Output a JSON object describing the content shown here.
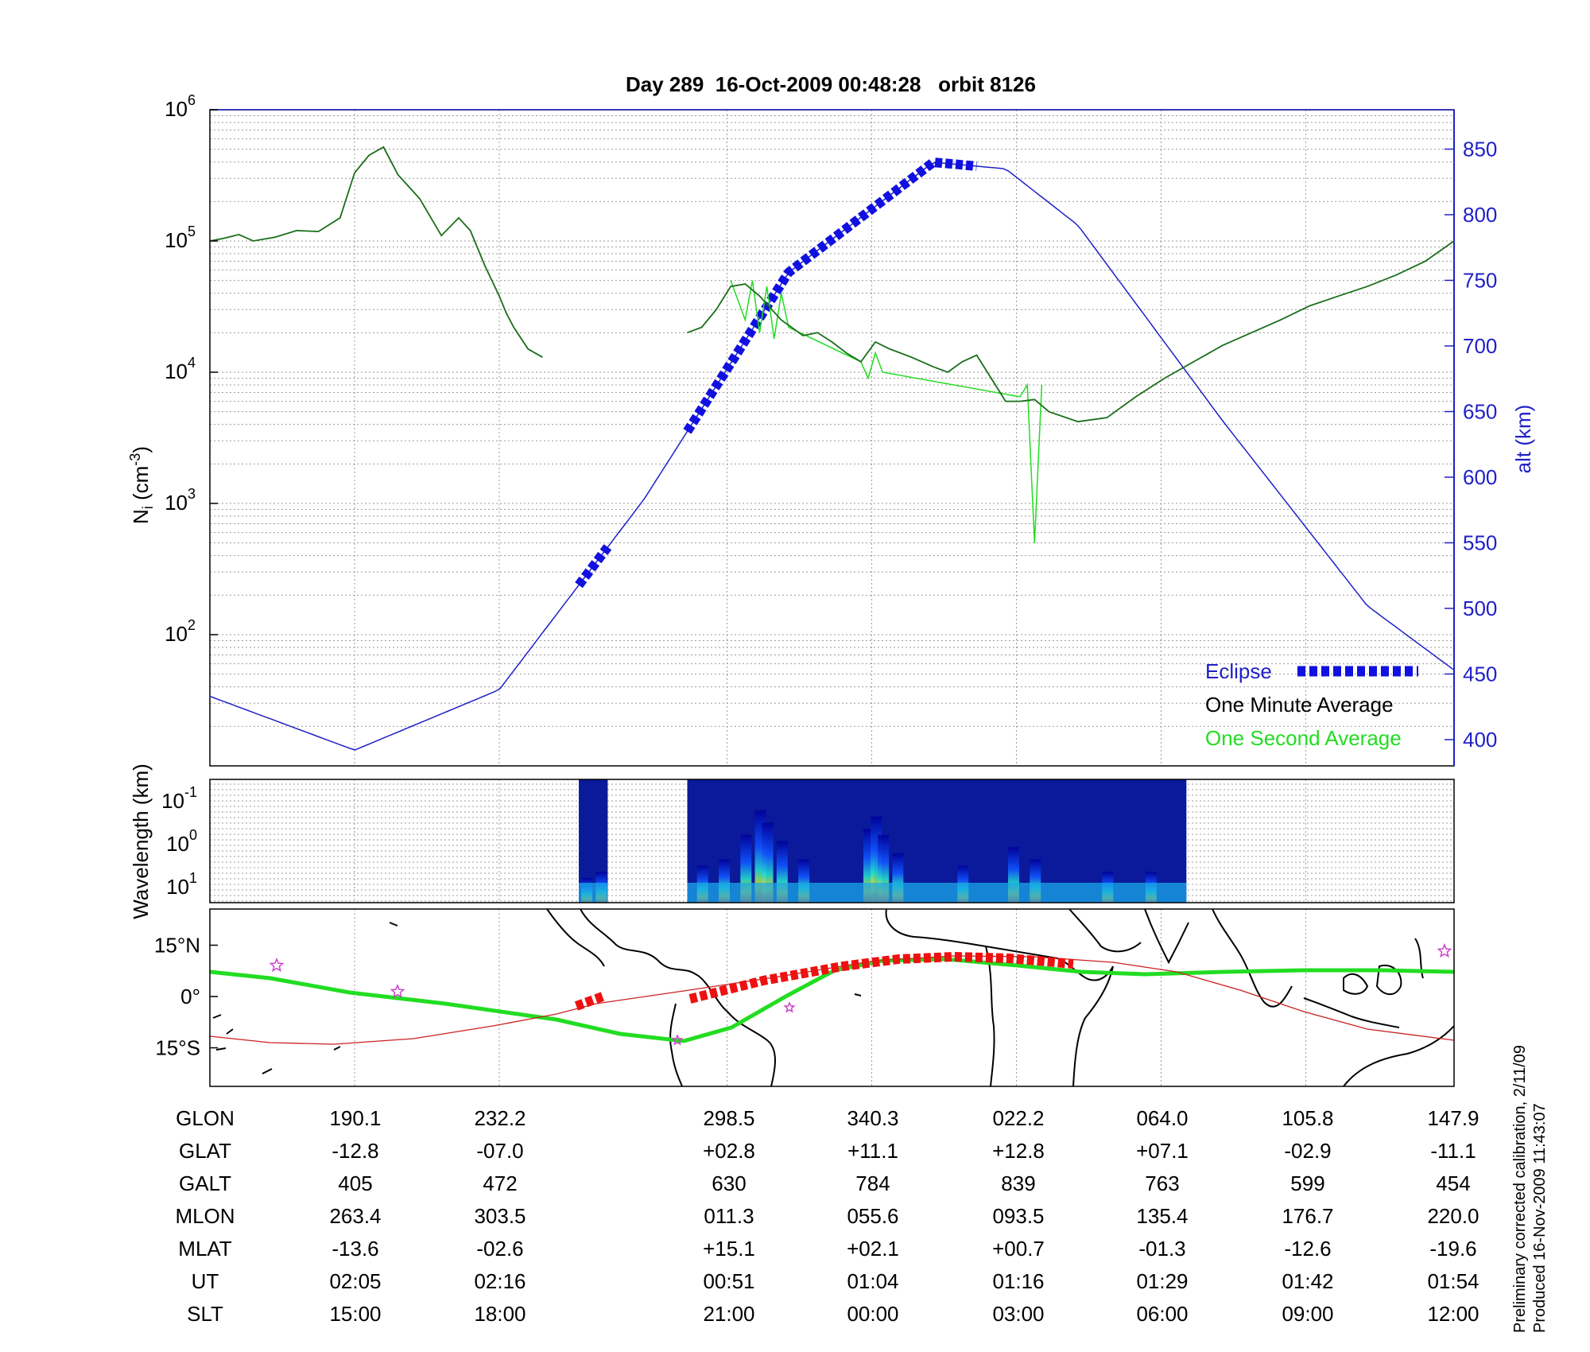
{
  "chart_data": [
    {
      "type": "line",
      "title": "Day 289  16-Oct-2009 00:48:28   orbit 8126",
      "ylabel": "N_i (cm^-3)",
      "ylabel_right": "alt (km)",
      "yscale": "log",
      "ylim": [
        10,
        1000000
      ],
      "y_tick_labels": [
        "10^2",
        "10^3",
        "10^4",
        "10^5",
        "10^6"
      ],
      "y2lim": [
        380,
        880
      ],
      "y2_ticks": [
        400,
        450,
        500,
        550,
        600,
        650,
        700,
        750,
        800,
        850
      ],
      "grid": true,
      "legend": {
        "placement": "lower-right",
        "entries": [
          "Eclipse",
          "One Minute Average",
          "One Second Average"
        ]
      },
      "colors": {
        "altitude": "#2020c8",
        "minute_avg": "#1a6e1a",
        "second_avg": "#22dd22",
        "eclipse": "#1010e0"
      },
      "series": [
        {
          "name": "One Minute Average",
          "x": [
            0,
            0.1,
            0.2,
            0.3,
            0.45,
            0.6,
            0.75,
            0.9,
            1.0,
            1.1,
            1.2,
            1.3,
            1.45,
            1.6,
            1.72,
            1.8,
            1.9,
            2.0,
            2.05,
            2.1,
            2.2,
            2.3,
            2.4,
            2.5,
            2.6,
            2.7
          ],
          "y": [
            100000,
            105000,
            112000,
            100000,
            107000,
            120000,
            118000,
            150000,
            330000,
            450000,
            520000,
            320000,
            210000,
            110000,
            150000,
            120000,
            65000,
            38000,
            28000,
            22000,
            15000,
            13000,
            null,
            null,
            null,
            null
          ]
        },
        {
          "name": "One Minute Average",
          "x": [
            3.3,
            3.4,
            3.5,
            3.6,
            3.7,
            3.8,
            3.95,
            4.1,
            4.2,
            4.3,
            4.4,
            4.5,
            4.6,
            4.7,
            4.85,
            5.0,
            5.1,
            5.2,
            5.3,
            5.4,
            5.5,
            5.6,
            5.7,
            5.8,
            6.0,
            6.2,
            6.4,
            6.6,
            6.8,
            7.0,
            7.2,
            7.4,
            7.6,
            7.8,
            8.0,
            8.2,
            8.4,
            8.6
          ],
          "y": [
            20000,
            22000,
            30000,
            45000,
            47000,
            38000,
            25000,
            19000,
            20000,
            17000,
            14000,
            12000,
            17000,
            15000,
            13000,
            11000,
            10000,
            12000,
            13500,
            9000,
            6000,
            6000,
            6200,
            5000,
            4200,
            4500,
            6500,
            9000,
            12000,
            16000,
            20000,
            25000,
            32000,
            38000,
            45000,
            55000,
            70000,
            100000
          ]
        },
        {
          "name": "One Second Average",
          "x": [
            3.6,
            3.7,
            3.75,
            3.8,
            3.85,
            3.9,
            3.95,
            4.0,
            4.5,
            4.55,
            4.6,
            4.65,
            5.6,
            5.65,
            5.7,
            5.75
          ],
          "y": [
            50000,
            25000,
            50000,
            20000,
            45000,
            18000,
            40000,
            22000,
            12000,
            9000,
            14000,
            10000,
            6500,
            8000,
            500,
            8000
          ]
        },
        {
          "name": "alt (km)",
          "x": [
            0,
            1.0,
            2.0,
            3.0,
            4.0,
            5.0,
            5.5,
            6.0,
            7.0,
            8.0,
            8.6
          ],
          "y": [
            433,
            392,
            438,
            583,
            756,
            840,
            835,
            792,
            643,
            502,
            453
          ]
        }
      ],
      "eclipse_segments": [
        [
          2.55,
          2.75
        ],
        [
          3.3,
          5.3
        ]
      ],
      "x_tick_labels_shown_below": true
    },
    {
      "type": "heatmap",
      "ylabel": "Wavelength (km)",
      "y_tick_labels": [
        "10^-1",
        "10^0",
        "10^1"
      ],
      "colormap": "jet",
      "data_segments": [
        [
          2.55,
          2.75
        ],
        [
          3.3,
          6.75
        ]
      ]
    },
    {
      "type": "map",
      "y_tick_labels": [
        "15°N",
        "0°",
        "15°S"
      ],
      "track_colors": {
        "magnetic_equator": "#22dd22",
        "orbit": "#cc2020",
        "eclipse": "#ee1111",
        "stars": "#cc44cc"
      }
    }
  ],
  "table": {
    "rows": [
      {
        "label": "GLON",
        "values": [
          "190.1",
          "232.2",
          "298.5",
          "340.3",
          "022.2",
          "064.0",
          "105.8",
          "147.9"
        ]
      },
      {
        "label": "GLAT",
        "values": [
          "-12.8",
          "-07.0",
          "+02.8",
          "+11.1",
          "+12.8",
          "+07.1",
          "-02.9",
          "-11.1"
        ]
      },
      {
        "label": "GALT",
        "values": [
          "405",
          "472",
          "630",
          "784",
          "839",
          "763",
          "599",
          "454"
        ]
      },
      {
        "label": "MLON",
        "values": [
          "263.4",
          "303.5",
          "011.3",
          "055.6",
          "093.5",
          "135.4",
          "176.7",
          "220.0"
        ]
      },
      {
        "label": "MLAT",
        "values": [
          "-13.6",
          "-02.6",
          "+15.1",
          "+02.1",
          "+00.7",
          "-01.3",
          "-12.6",
          "-19.6"
        ]
      },
      {
        "label": "UT",
        "values": [
          "02:05",
          "02:16",
          "00:51",
          "01:04",
          "01:16",
          "01:29",
          "01:42",
          "01:54"
        ]
      },
      {
        "label": "SLT",
        "values": [
          "15:00",
          "18:00",
          "21:00",
          "00:00",
          "03:00",
          "06:00",
          "09:00",
          "12:00"
        ]
      }
    ]
  },
  "footer": {
    "line1": "Preliminary corrected calibration, 2/11/09",
    "line2": "Produced 16-Nov-2009 11:43:07"
  }
}
